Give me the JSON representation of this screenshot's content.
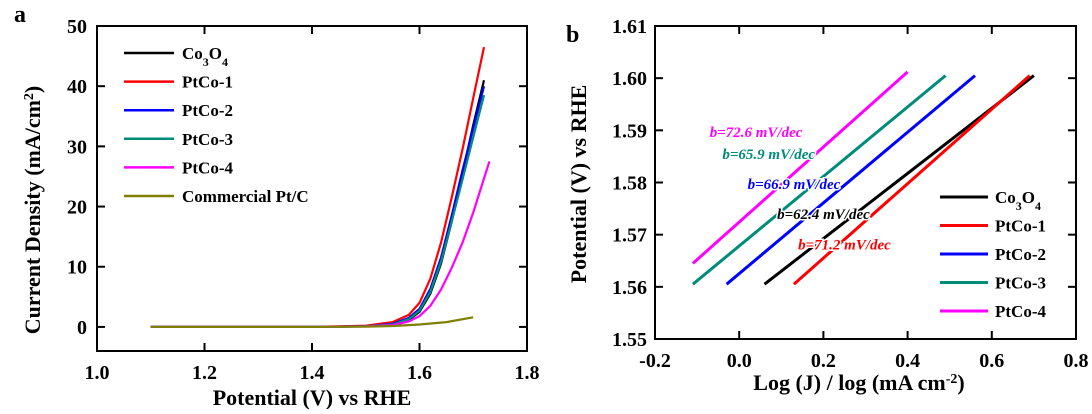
{
  "panel_a": {
    "label": "a",
    "xlabel": "Potential (V) vs RHE",
    "ylabel_main": "Current Density (mA/cm",
    "ylabel_sup": "2",
    "ylabel_end": ")"
  },
  "panel_b": {
    "label": "b",
    "xlabel_main": "Log (J) / log (mA cm",
    "xlabel_sup": "-2",
    "xlabel_end": ")",
    "ylabel": "Potential (V) vs RHE"
  },
  "chart_data": [
    {
      "type": "line",
      "panel": "a",
      "xlabel": "Potential (V) vs RHE",
      "ylabel": "Current Density (mA/cm2)",
      "xlim": [
        1.0,
        1.8
      ],
      "ylim": [
        -4,
        50
      ],
      "xticks": [
        "1.0",
        "1.2",
        "1.4",
        "1.6",
        "1.8"
      ],
      "yticks": [
        "0",
        "10",
        "20",
        "30",
        "40",
        "50"
      ],
      "legend_position": "top-left",
      "series": [
        {
          "name": "Co3O4",
          "legend": "Co₃O₄",
          "color": "#000000",
          "x": [
            1.1,
            1.4,
            1.5,
            1.55,
            1.58,
            1.6,
            1.62,
            1.64,
            1.66,
            1.68,
            1.7,
            1.72
          ],
          "y": [
            0,
            0,
            0.1,
            0.4,
            1.2,
            2.5,
            5.5,
            10.5,
            17.5,
            25.5,
            33.5,
            41
          ]
        },
        {
          "name": "PtCo-1",
          "legend": "PtCo-1",
          "color": "#ff0000",
          "x": [
            1.1,
            1.4,
            1.5,
            1.55,
            1.58,
            1.6,
            1.62,
            1.64,
            1.66,
            1.68,
            1.7,
            1.72
          ],
          "y": [
            0,
            0,
            0.2,
            0.8,
            2.0,
            4.0,
            8.0,
            14.0,
            21.5,
            29.5,
            38.0,
            46.5
          ]
        },
        {
          "name": "PtCo-2",
          "legend": "PtCo-2",
          "color": "#0000ff",
          "x": [
            1.1,
            1.4,
            1.5,
            1.55,
            1.58,
            1.6,
            1.62,
            1.64,
            1.66,
            1.68,
            1.7,
            1.72
          ],
          "y": [
            0,
            0,
            0.1,
            0.5,
            1.5,
            3.0,
            6.3,
            11.5,
            18.5,
            26.0,
            33.0,
            40
          ]
        },
        {
          "name": "PtCo-3",
          "legend": "PtCo-3",
          "color": "#008b7a",
          "x": [
            1.1,
            1.4,
            1.5,
            1.55,
            1.58,
            1.6,
            1.62,
            1.64,
            1.66,
            1.68,
            1.7,
            1.72
          ],
          "y": [
            0,
            0,
            0.1,
            0.4,
            1.3,
            2.7,
            5.8,
            10.8,
            17.5,
            24.5,
            31.5,
            38.5
          ]
        },
        {
          "name": "PtCo-4",
          "legend": "PtCo-4",
          "color": "#ff00ff",
          "x": [
            1.1,
            1.4,
            1.5,
            1.55,
            1.58,
            1.6,
            1.62,
            1.64,
            1.66,
            1.68,
            1.7,
            1.73
          ],
          "y": [
            0,
            0,
            0.1,
            0.3,
            0.9,
            1.8,
            3.5,
            6.2,
            9.8,
            14.0,
            19.0,
            27.5
          ]
        },
        {
          "name": "Commercial Pt/C",
          "legend": "Commercial Pt/C",
          "color": "#808000",
          "x": [
            1.1,
            1.4,
            1.5,
            1.55,
            1.6,
            1.65,
            1.7
          ],
          "y": [
            0,
            0,
            0.05,
            0.15,
            0.4,
            0.8,
            1.6
          ]
        }
      ]
    },
    {
      "type": "line",
      "panel": "b",
      "xlabel": "Log (J) / log (mA cm-2)",
      "ylabel": "Potential (V) vs RHE",
      "xlim": [
        -0.2,
        0.8
      ],
      "ylim": [
        1.55,
        1.61
      ],
      "xticks": [
        "-0.2",
        "0.0",
        "0.2",
        "0.4",
        "0.6",
        "0.8"
      ],
      "yticks": [
        "1.55",
        "1.56",
        "1.57",
        "1.58",
        "1.59",
        "1.60",
        "1.61"
      ],
      "legend_position": "bottom-right",
      "series": [
        {
          "name": "Co3O4",
          "legend": "Co₃O₄",
          "color": "#000000",
          "x": [
            0.06,
            0.7
          ],
          "y": [
            1.5605,
            1.6005
          ]
        },
        {
          "name": "PtCo-1",
          "legend": "PtCo-1",
          "color": "#ff0000",
          "x": [
            0.13,
            0.69
          ],
          "y": [
            1.5605,
            1.6005
          ]
        },
        {
          "name": "PtCo-2",
          "legend": "PtCo-2",
          "color": "#0000ff",
          "x": [
            -0.03,
            0.56
          ],
          "y": [
            1.5605,
            1.6005
          ]
        },
        {
          "name": "PtCo-3",
          "legend": "PtCo-3",
          "color": "#008b7a",
          "x": [
            -0.11,
            0.49
          ],
          "y": [
            1.5605,
            1.6005
          ]
        },
        {
          "name": "PtCo-4",
          "legend": "PtCo-4",
          "color": "#ff00ff",
          "x": [
            -0.11,
            0.4
          ],
          "y": [
            1.5645,
            1.6012
          ]
        }
      ],
      "annotations": [
        {
          "text": "b=72.6 mV/dec",
          "color": "#ff00ff",
          "x": -0.07,
          "y": 1.5887
        },
        {
          "text": "b=65.9 mV/dec",
          "color": "#008b7a",
          "x": -0.04,
          "y": 1.5845
        },
        {
          "text": "b=66.9 mV/dec",
          "color": "#0000ff",
          "x": 0.02,
          "y": 1.5788
        },
        {
          "text": "b=62.4 mV/dec",
          "color": "#000000",
          "x": 0.09,
          "y": 1.573
        },
        {
          "text": "b=71.2 mV/dec",
          "color": "#ff0000",
          "x": 0.14,
          "y": 1.5672
        }
      ]
    }
  ]
}
